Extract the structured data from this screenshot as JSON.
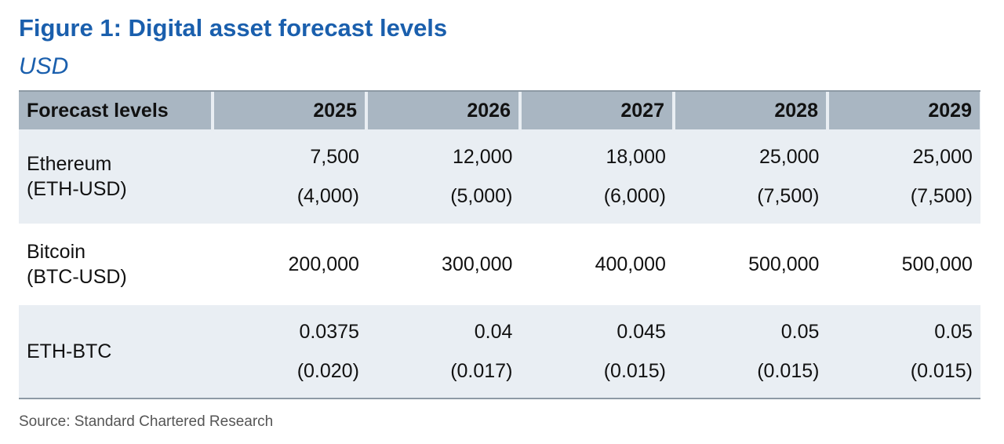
{
  "title": "Figure 1: Digital asset forecast levels",
  "subtitle": "USD",
  "source": "Source: Standard Chartered Research",
  "colors": {
    "title": "#1a5fad",
    "header_bg": "#a9b6c2",
    "band_bg": "#e9eef3"
  },
  "chart_data": {
    "type": "table",
    "columns": [
      "Forecast levels",
      "2025",
      "2026",
      "2027",
      "2028",
      "2029"
    ],
    "rows": [
      {
        "label_line1": "Ethereum",
        "label_line2": "(ETH-USD)",
        "values": [
          "7,500",
          "12,000",
          "18,000",
          "25,000",
          "25,000"
        ],
        "secondary": [
          "(4,000)",
          "(5,000)",
          "(6,000)",
          "(7,500)",
          "(7,500)"
        ]
      },
      {
        "label_line1": "Bitcoin",
        "label_line2": "(BTC-USD)",
        "values": [
          "200,000",
          "300,000",
          "400,000",
          "500,000",
          "500,000"
        ]
      },
      {
        "label_line1": "ETH-BTC",
        "values": [
          "0.0375",
          "0.04",
          "0.045",
          "0.05",
          "0.05"
        ],
        "secondary": [
          "(0.020)",
          "(0.017)",
          "(0.015)",
          "(0.015)",
          "(0.015)"
        ]
      }
    ]
  }
}
